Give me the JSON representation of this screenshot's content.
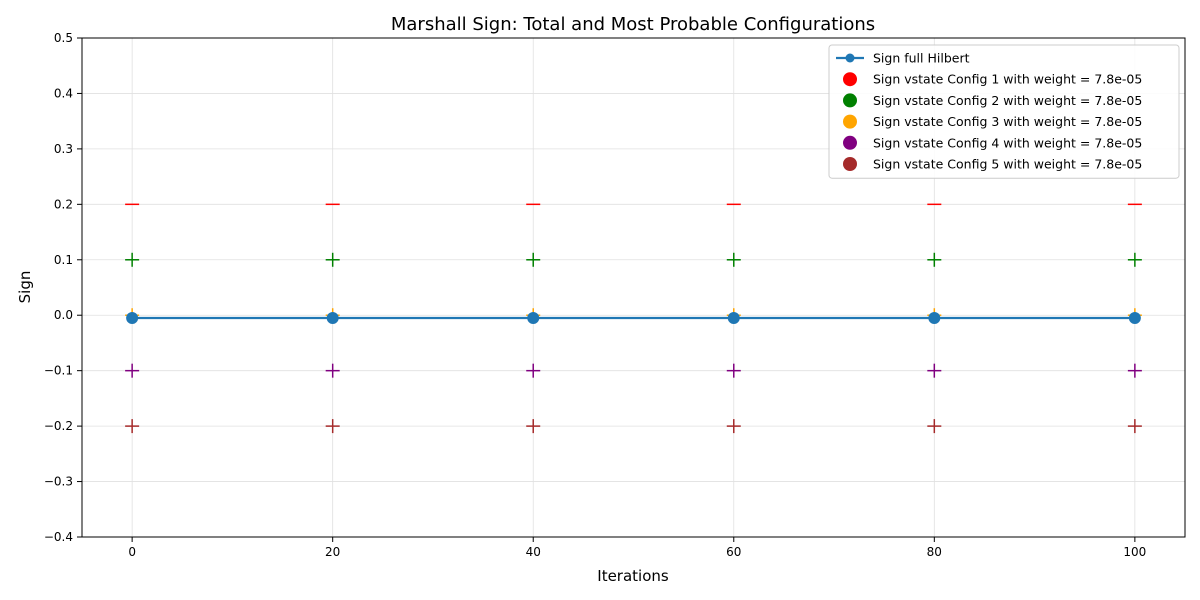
{
  "chart_data": {
    "type": "line",
    "title": "Marshall Sign: Total and Most Probable Configurations",
    "xlabel": "Iterations",
    "ylabel": "Sign",
    "xlim": [
      -5,
      105
    ],
    "ylim": [
      -0.4,
      0.5
    ],
    "x_ticks": [
      0,
      20,
      40,
      60,
      80,
      100
    ],
    "y_ticks": [
      -0.4,
      -0.3,
      -0.2,
      -0.1,
      0.0,
      0.1,
      0.2,
      0.3,
      0.4,
      0.5
    ],
    "grid": true,
    "legend_position": "top-right",
    "series": [
      {
        "name": "Sign full Hilbert",
        "kind": "line-marker",
        "color": "#1f77b4",
        "x": [
          0,
          20,
          40,
          60,
          80,
          100
        ],
        "y": [
          -0.005,
          -0.005,
          -0.005,
          -0.005,
          -0.005,
          -0.005
        ]
      },
      {
        "name": "Sign vstate Config 1 with weight = 7.8e-05",
        "kind": "minus",
        "color": "#ff0000",
        "x": [
          0,
          20,
          40,
          60,
          80,
          100
        ],
        "y": [
          0.2,
          0.2,
          0.2,
          0.2,
          0.2,
          0.2
        ]
      },
      {
        "name": "Sign vstate Config 2 with weight = 7.8e-05",
        "kind": "plus",
        "color": "#008000",
        "x": [
          0,
          20,
          40,
          60,
          80,
          100
        ],
        "y": [
          0.1,
          0.1,
          0.1,
          0.1,
          0.1,
          0.1
        ]
      },
      {
        "name": "Sign vstate Config 3 with weight = 7.8e-05",
        "kind": "plus",
        "color": "#ffa500",
        "x": [
          0,
          20,
          40,
          60,
          80,
          100
        ],
        "y": [
          0.0,
          0.0,
          0.0,
          0.0,
          0.0,
          0.0
        ]
      },
      {
        "name": "Sign vstate Config 4 with weight = 7.8e-05",
        "kind": "plus",
        "color": "#800080",
        "x": [
          0,
          20,
          40,
          60,
          80,
          100
        ],
        "y": [
          -0.1,
          -0.1,
          -0.1,
          -0.1,
          -0.1,
          -0.1
        ]
      },
      {
        "name": "Sign vstate Config 5 with weight = 7.8e-05",
        "kind": "plus",
        "color": "#a52a2a",
        "x": [
          0,
          20,
          40,
          60,
          80,
          100
        ],
        "y": [
          -0.2,
          -0.2,
          -0.2,
          -0.2,
          -0.2,
          -0.2
        ]
      }
    ]
  }
}
